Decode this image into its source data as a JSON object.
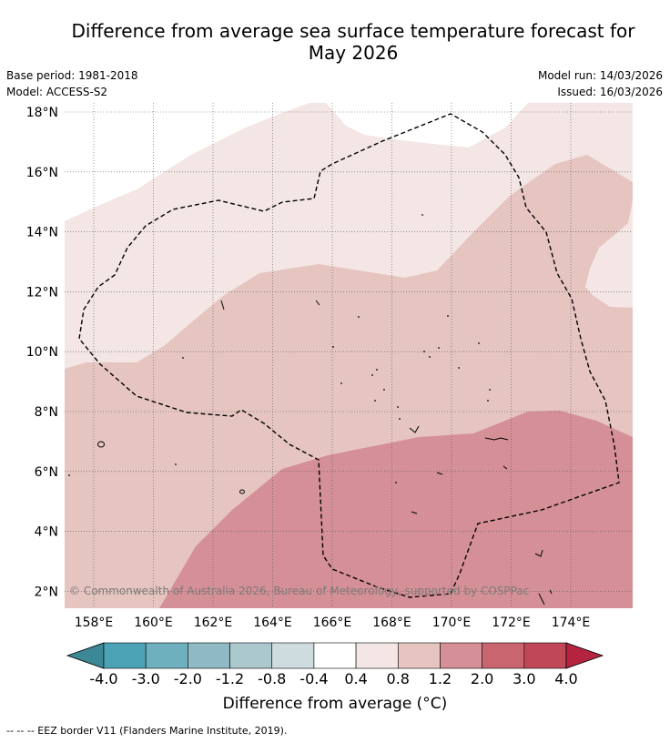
{
  "title_line1": "Difference from average sea surface temperature forecast for",
  "title_line2": "May 2026",
  "base_period": "Base period: 1981-2018",
  "model": "Model: ACCESS-S2",
  "model_run": "Model run: 14/03/2026",
  "issued": "Issued: 16/03/2026",
  "copyright": "© Commonwealth of Australia 2026, Bureau of Meteorology, supported by COSPPac",
  "lat_labels": [
    "18°N",
    "16°N",
    "14°N",
    "12°N",
    "10°N",
    "8°N",
    "6°N",
    "4°N",
    "2°N"
  ],
  "lat_values": [
    18,
    16,
    14,
    12,
    10,
    8,
    6,
    4,
    2
  ],
  "lon_labels": [
    "158°E",
    "160°E",
    "162°E",
    "164°E",
    "166°E",
    "168°E",
    "170°E",
    "172°E",
    "174°E"
  ],
  "lon_values": [
    158,
    160,
    162,
    164,
    166,
    168,
    170,
    172,
    174
  ],
  "colorbar": {
    "ticks": [
      "-4.0",
      "-3.0",
      "-2.0",
      "-1.2",
      "-0.8",
      "-0.4",
      "0.4",
      "0.8",
      "1.2",
      "2.0",
      "3.0",
      "4.0"
    ],
    "colors": [
      "#3c8896",
      "#4ba3b5",
      "#6fb0bf",
      "#8fbac5",
      "#abc9cd",
      "#cfdcdf",
      "#ffffff",
      "#f3e6e5",
      "#e6c5c1",
      "#d59097",
      "#c9656e",
      "#c04755",
      "#b5243f"
    ],
    "label": "Difference from average (°C)"
  },
  "legend_footer": "-- -- -- EEZ border V11 (Flanders Marine Institute, 2019).",
  "palette": {
    "band_04_08": "#f3e6e5",
    "band_08_12": "#e6c5c1",
    "band_12_20": "#d59097",
    "band_white": "#ffffff"
  }
}
